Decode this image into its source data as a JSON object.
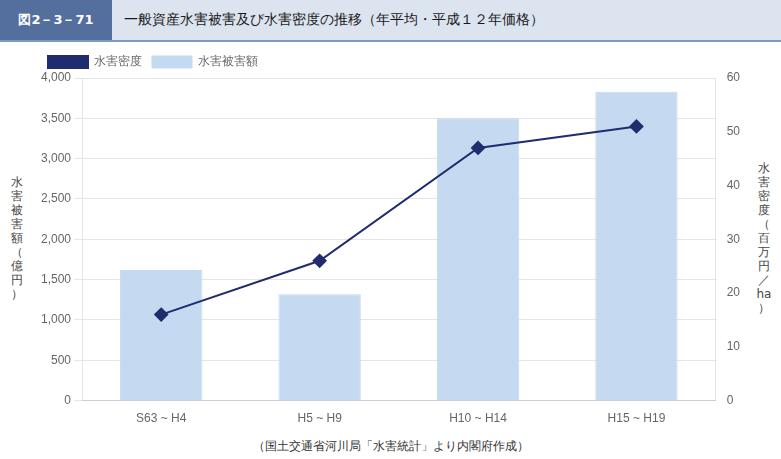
{
  "chart_data": {
    "type": "bar",
    "title": "一般資産水害被害及び水害密度の推移（年平均・平成１２年価格）",
    "annotations": [
      "図2－3－71",
      "（国土交通省河川局「水害統計」より内閣府作成）"
    ],
    "categories": [
      "S63 ~ H4",
      "H5 ~ H9",
      "H10 ~ H14",
      "H15 ~ H19"
    ],
    "series": [
      {
        "name": "水害被害額",
        "type": "bar",
        "color": "#c5d9f1",
        "values": [
          1620,
          1320,
          3500,
          3830
        ]
      },
      {
        "name": "水害密度",
        "type": "line",
        "color": "#1f2d6e",
        "marker": "diamond",
        "axis": "y2",
        "values": [
          16,
          26,
          47,
          51
        ]
      }
    ],
    "ylabel": "水\n害\n被\n害\n額\n（\n億\n円\n）",
    "y2label": "水\n害\n密\n度\n（\n百\n万\n円\n／\nha\n）",
    "ylim": [
      0,
      4000
    ],
    "yticks": [
      0,
      500,
      1000,
      1500,
      2000,
      2500,
      3000,
      3500,
      4000
    ],
    "y2lim": [
      0,
      60
    ],
    "y2ticks": [
      0,
      10,
      20,
      30,
      40,
      50,
      60
    ],
    "grid": true,
    "legend": "upper left"
  }
}
